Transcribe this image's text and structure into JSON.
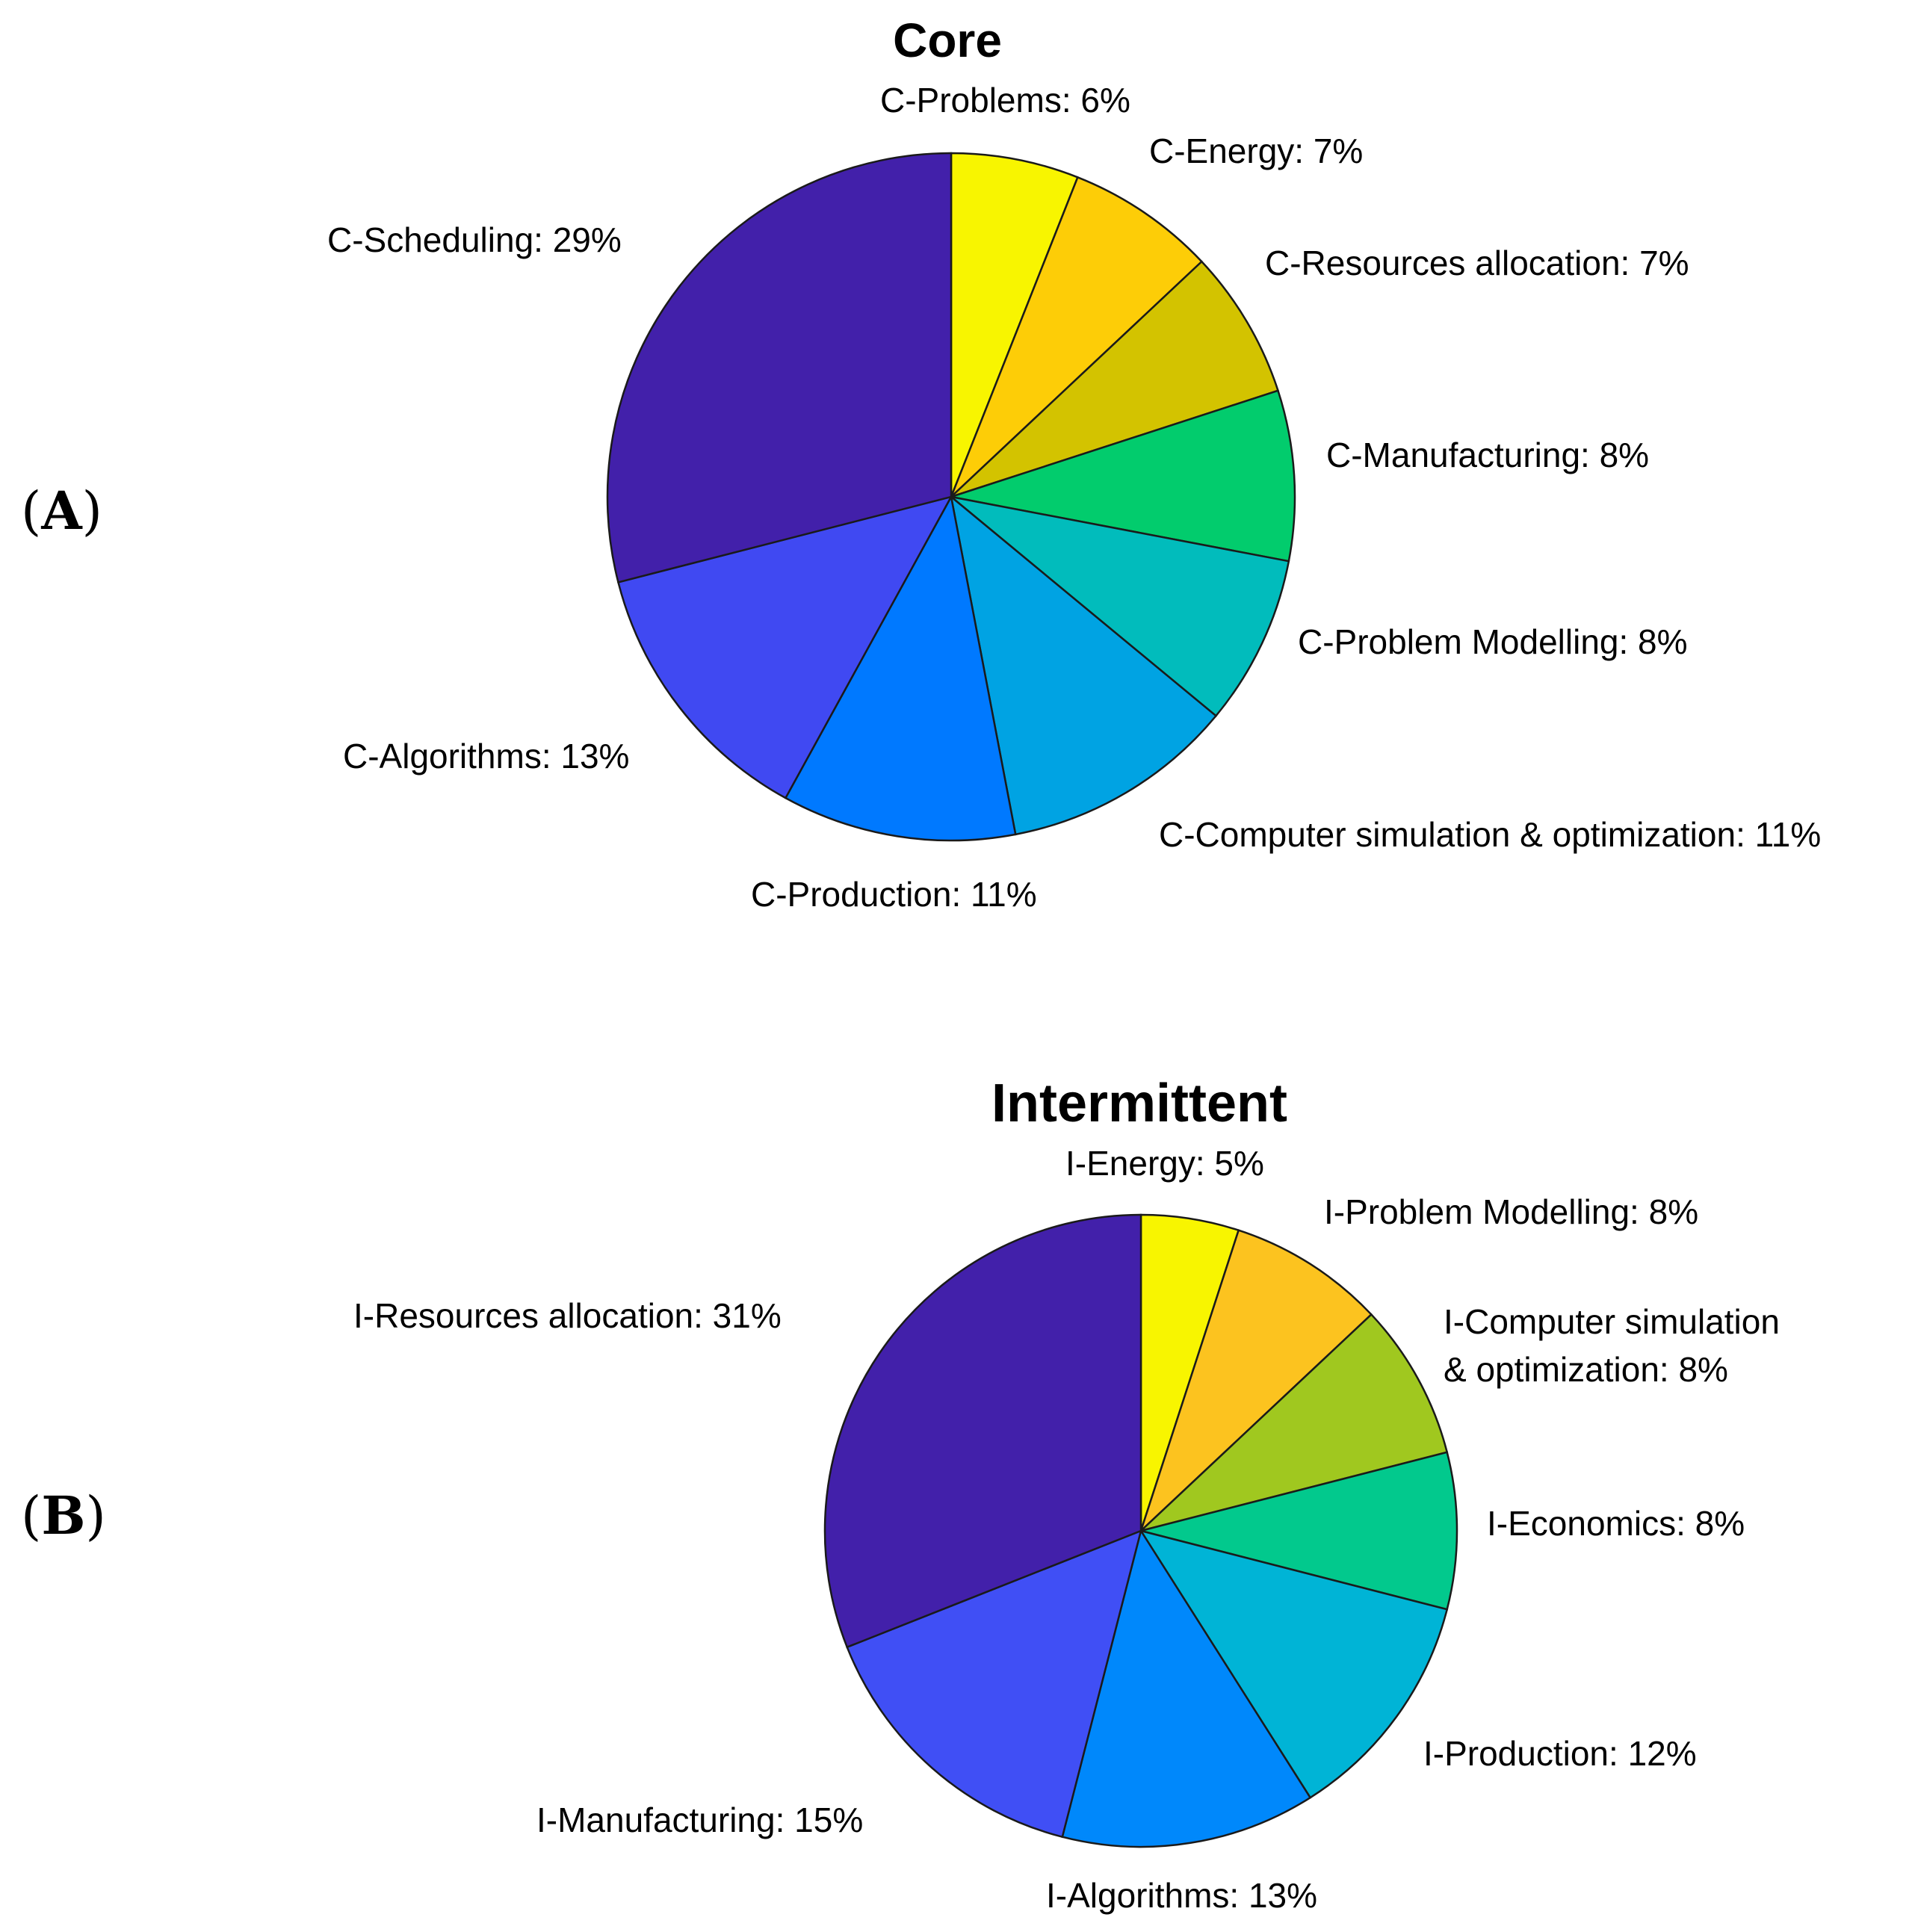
{
  "chart_data": [
    {
      "type": "pie",
      "panel": "A",
      "title": "Core",
      "slices": [
        {
          "label": "C-Problems",
          "value": 6,
          "display": "C-Problems: 6%",
          "color": "#f8f500"
        },
        {
          "label": "C-Energy",
          "value": 7,
          "display": "C-Energy: 7%",
          "color": "#fdcd07"
        },
        {
          "label": "C-Resources allocation",
          "value": 7,
          "display": "C-Resources allocation: 7%",
          "color": "#d3c300"
        },
        {
          "label": "C-Manufacturing",
          "value": 8,
          "display": "C-Manufacturing: 8%",
          "color": "#02cc6d"
        },
        {
          "label": "C-Problem Modelling",
          "value": 8,
          "display": "C-Problem Modelling: 8%",
          "color": "#01bcbc"
        },
        {
          "label": "C-Computer simulation & optimization",
          "value": 11,
          "display": "C-Computer simulation & optimization: 11%",
          "color": "#00a3e3"
        },
        {
          "label": "C-Production",
          "value": 11,
          "display": "C-Production: 11%",
          "color": "#0079ff"
        },
        {
          "label": "C-Algorithms",
          "value": 13,
          "display": "C-Algorithms: 13%",
          "color": "#4049f2"
        },
        {
          "label": "C-Scheduling",
          "value": 29,
          "display": "C-Scheduling: 29%",
          "color": "#4220aa"
        }
      ]
    },
    {
      "type": "pie",
      "panel": "B",
      "title": "Intermittent",
      "slices": [
        {
          "label": "I-Energy",
          "value": 5,
          "display": "I-Energy: 5%",
          "color": "#f8f500"
        },
        {
          "label": "I-Problem Modelling",
          "value": 8,
          "display": "I-Problem Modelling: 8%",
          "color": "#fcc31f"
        },
        {
          "label": "I-Computer simulation & optimization",
          "value": 8,
          "display": [
            "I-Computer simulation",
            "& optimization: 8%"
          ],
          "color": "#a0c81f"
        },
        {
          "label": "I-Economics",
          "value": 8,
          "display": "I-Economics: 8%",
          "color": "#02c98d"
        },
        {
          "label": "I-Production",
          "value": 12,
          "display": "I-Production: 12%",
          "color": "#00b4d6"
        },
        {
          "label": "I-Algorithms",
          "value": 13,
          "display": "I-Algorithms: 13%",
          "color": "#0088fb"
        },
        {
          "label": "I-Manufacturing",
          "value": 15,
          "display": "I-Manufacturing: 15%",
          "color": "#404ff5"
        },
        {
          "label": "I-Resources allocation",
          "value": 31,
          "display": "I-Resources allocation: 31%",
          "color": "#4220aa"
        }
      ]
    }
  ]
}
